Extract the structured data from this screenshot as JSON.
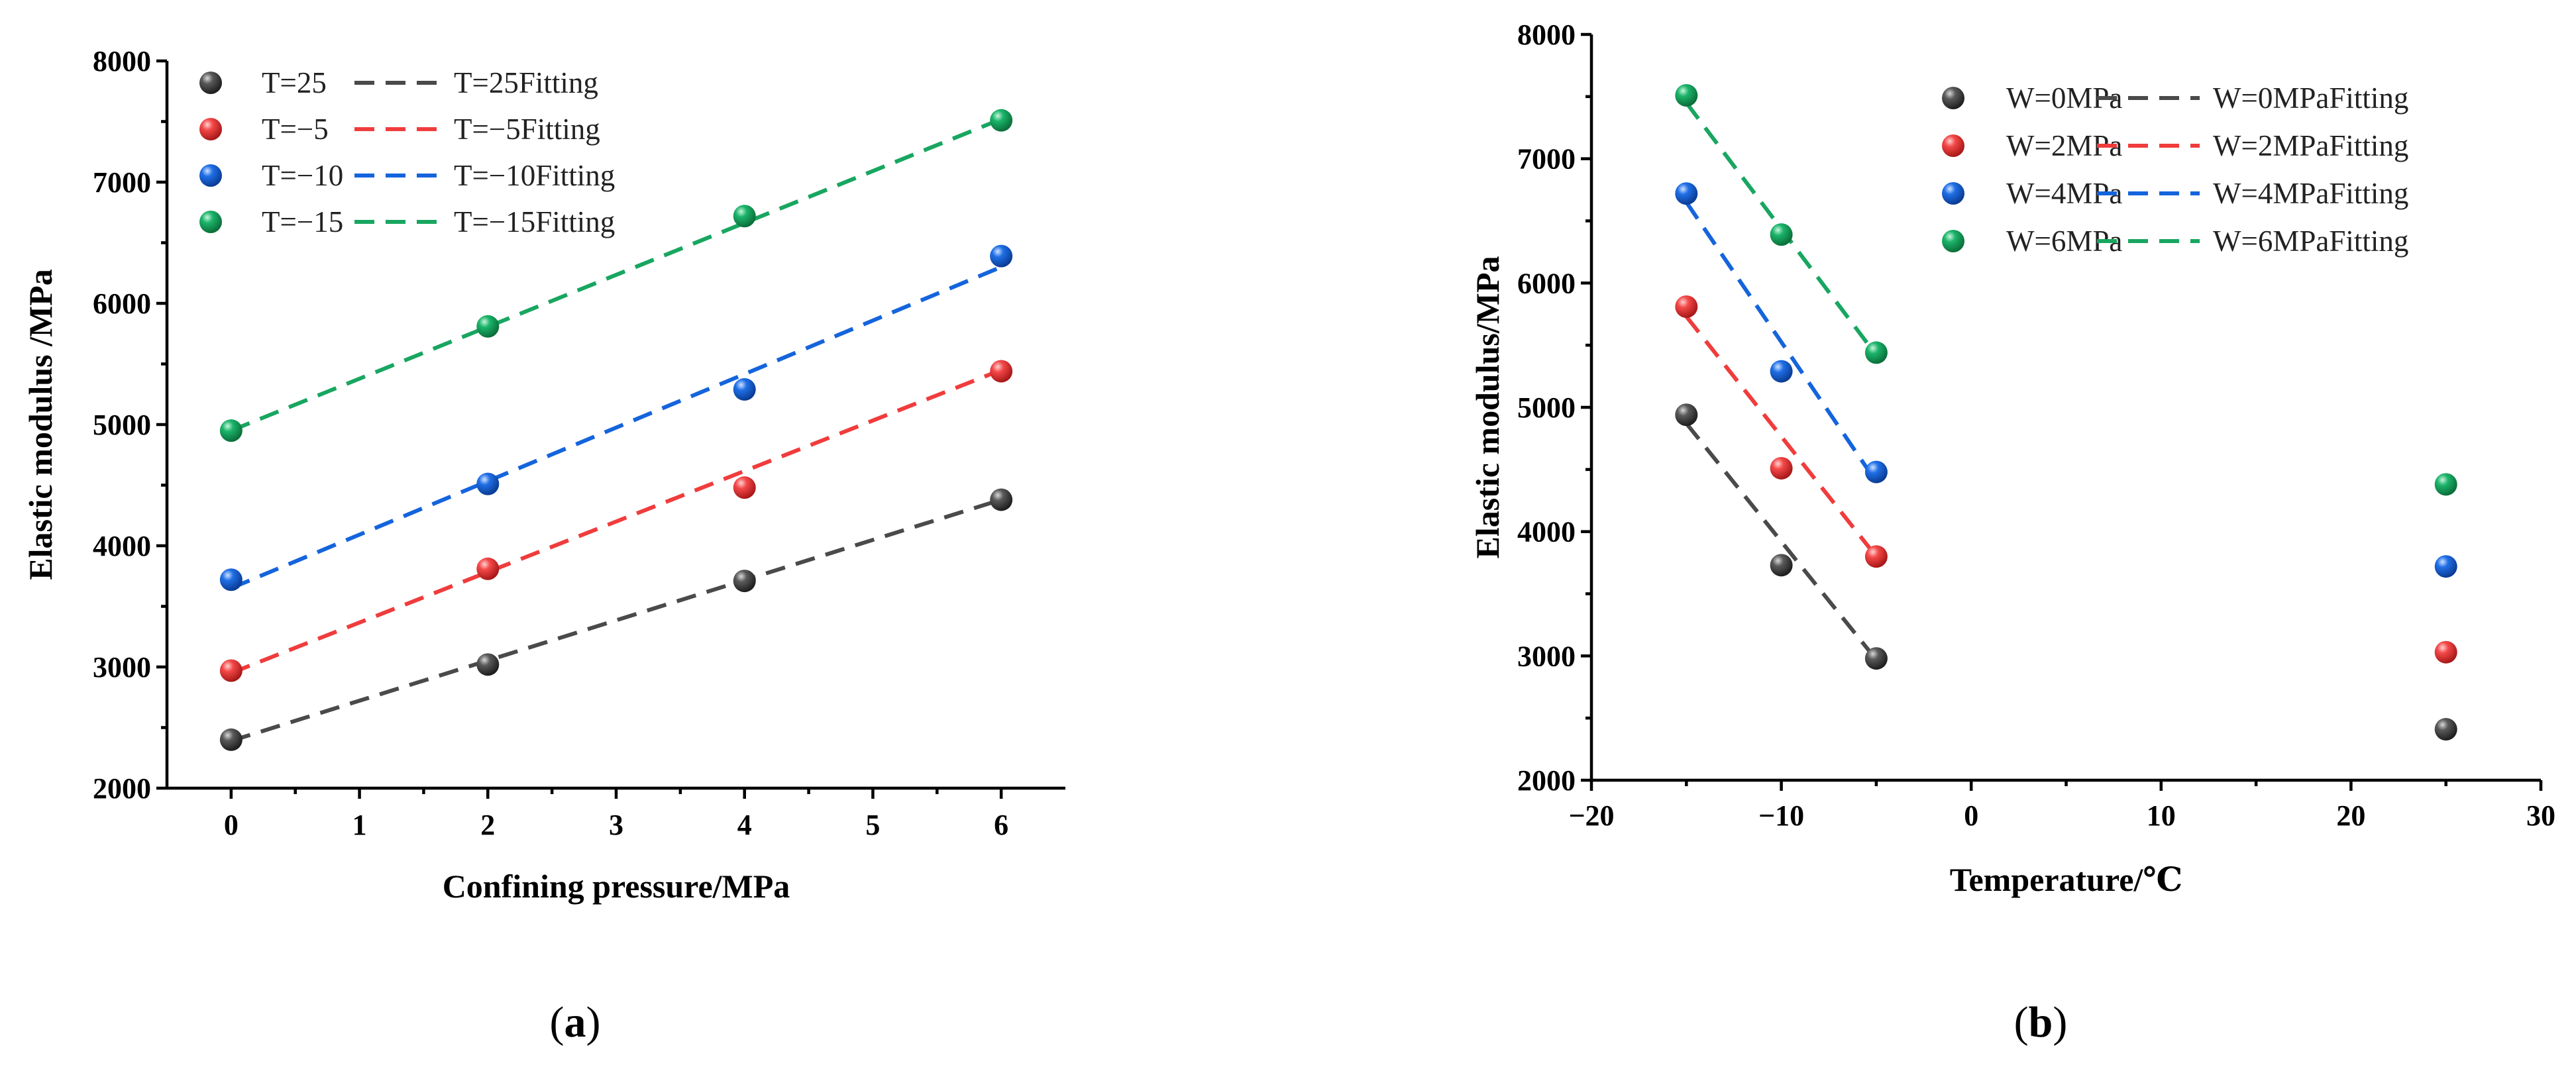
{
  "colors": {
    "gray": "#4a4a4a",
    "red": "#f03c3c",
    "blue": "#1464dc",
    "green": "#18a660"
  },
  "panel_labels": [
    {
      "open": "(",
      "letter": "a",
      "close": ")"
    },
    {
      "open": "(",
      "letter": "b",
      "close": ")"
    }
  ],
  "chart_data": [
    {
      "type": "scatter",
      "panel": "a",
      "xlabel": "Confining pressure/MPa",
      "ylabel": "Elastic modulus /MPa",
      "xlim": [
        -0.5,
        6.5
      ],
      "ylim": [
        2000,
        8000
      ],
      "xticks": [
        0,
        1,
        2,
        3,
        4,
        5,
        6
      ],
      "yticks": [
        2000,
        3000,
        4000,
        5000,
        6000,
        7000,
        8000
      ],
      "legend_position": "top-left",
      "series": [
        {
          "name": "T=25",
          "fit_name": "T=25Fitting",
          "color": "gray",
          "x": [
            0,
            2,
            4,
            6
          ],
          "y": [
            2400,
            3020,
            3710,
            4380
          ],
          "fit": [
            [
              0,
              2390
            ],
            [
              6,
              4380
            ]
          ]
        },
        {
          "name": "T=−5",
          "fit_name": "T=−5Fitting",
          "color": "red",
          "x": [
            0,
            2,
            4,
            6
          ],
          "y": [
            2970,
            3810,
            4480,
            5440
          ],
          "fit": [
            [
              0,
              2950
            ],
            [
              6,
              5450
            ]
          ]
        },
        {
          "name": "T=−10",
          "fit_name": "T=−10Fitting",
          "color": "blue",
          "x": [
            0,
            2,
            4,
            6
          ],
          "y": [
            3720,
            4510,
            5290,
            6390
          ],
          "fit": [
            [
              0,
              3650
            ],
            [
              6,
              6300
            ]
          ]
        },
        {
          "name": "T=−15",
          "fit_name": "T=−15Fitting",
          "color": "green",
          "x": [
            0,
            2,
            4,
            6
          ],
          "y": [
            4950,
            5810,
            6720,
            7510
          ],
          "fit": [
            [
              0,
              4950
            ],
            [
              6,
              7520
            ]
          ]
        }
      ]
    },
    {
      "type": "scatter",
      "panel": "b",
      "xlabel": "Temperature/℃",
      "ylabel": "Elastic modulus/MPa",
      "xlim": [
        -20,
        30
      ],
      "ylim": [
        2000,
        8000
      ],
      "xticks": [
        -20,
        -10,
        0,
        10,
        20,
        30
      ],
      "yticks": [
        2000,
        3000,
        4000,
        5000,
        6000,
        7000,
        8000
      ],
      "legend_position": "top-right",
      "series": [
        {
          "name": "W=0MPa",
          "fit_name": "W=0MPaFitting",
          "color": "gray",
          "x": [
            -15,
            -10,
            -5,
            25
          ],
          "y": [
            4940,
            3730,
            2980,
            2410
          ],
          "fit": [
            [
              -15,
              4870
            ],
            [
              -5,
              2970
            ]
          ]
        },
        {
          "name": "W=2MPa",
          "fit_name": "W=2MPaFitting",
          "color": "red",
          "x": [
            -15,
            -10,
            -5,
            25
          ],
          "y": [
            5810,
            4510,
            3800,
            3030
          ],
          "fit": [
            [
              -15,
              5730
            ],
            [
              -5,
              3800
            ]
          ]
        },
        {
          "name": "W=4MPa",
          "fit_name": "W=4MPaFitting",
          "color": "blue",
          "x": [
            -15,
            -10,
            -5,
            25
          ],
          "y": [
            6720,
            5290,
            4480,
            3720
          ],
          "fit": [
            [
              -15,
              6650
            ],
            [
              -5,
              4400
            ]
          ]
        },
        {
          "name": "W=6MPa",
          "fit_name": "W=6MPaFitting",
          "color": "green",
          "x": [
            -15,
            -10,
            -5,
            25
          ],
          "y": [
            7510,
            6390,
            5440,
            4380
          ],
          "fit": [
            [
              -15,
              7450
            ],
            [
              -5,
              5420
            ]
          ]
        }
      ]
    }
  ]
}
